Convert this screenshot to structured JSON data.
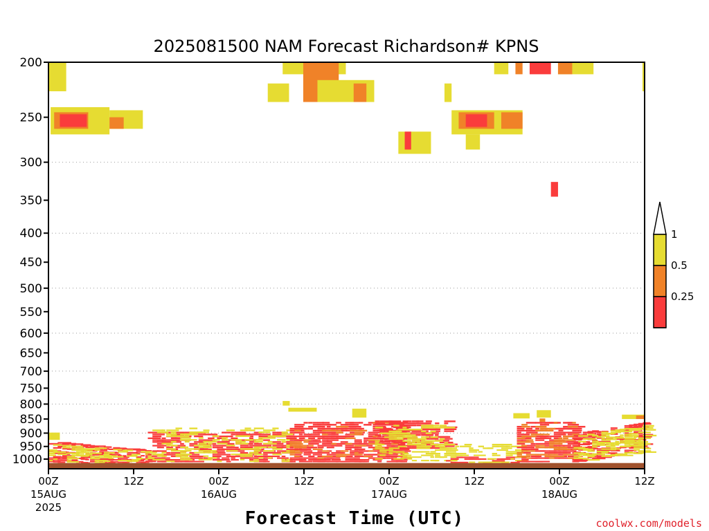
{
  "chart_data": {
    "type": "heatmap",
    "title": "2025081500 NAM Forecast Richardson# KPNS",
    "xlabel": "Forecast Time (UTC)",
    "ylabel": "",
    "y_scale": "pressure (reversed)",
    "ylim": [
      1040,
      200
    ],
    "y_ticks": [
      "200",
      "250",
      "300",
      "350",
      "400",
      "450",
      "500",
      "550",
      "600",
      "650",
      "700",
      "750",
      "800",
      "850",
      "900",
      "950",
      "1000"
    ],
    "x_range_hours": [
      0,
      84
    ],
    "x_ticks": [
      {
        "hour": 0,
        "label": "00Z",
        "sub": "15AUG",
        "sub2": "2025"
      },
      {
        "hour": 12,
        "label": "12Z",
        "sub": "",
        "sub2": ""
      },
      {
        "hour": 24,
        "label": "00Z",
        "sub": "16AUG",
        "sub2": ""
      },
      {
        "hour": 36,
        "label": "12Z",
        "sub": "",
        "sub2": ""
      },
      {
        "hour": 48,
        "label": "00Z",
        "sub": "17AUG",
        "sub2": ""
      },
      {
        "hour": 60,
        "label": "12Z",
        "sub": "",
        "sub2": ""
      },
      {
        "hour": 72,
        "label": "00Z",
        "sub": "18AUG",
        "sub2": ""
      },
      {
        "hour": 84,
        "label": "12Z",
        "sub": "",
        "sub2": ""
      }
    ],
    "grid_pressures": [
      300,
      400,
      500,
      600,
      700,
      800,
      900
    ],
    "legend": {
      "position": "right",
      "levels": [
        {
          "label": "1",
          "color": "#e6dc32"
        },
        {
          "label": "0.5",
          "color": "#f08228"
        },
        {
          "label": "0.25",
          "color": "#fa3c3c"
        }
      ],
      "below_color": "#fa3c3c",
      "above_color": "#ffffff"
    },
    "colors": {
      "lt_025": "#fa3c3c",
      "lt_05": "#f08228",
      "lt_1": "#e6dc32",
      "ground": "#a0522d"
    },
    "cells": [
      {
        "t0": 0,
        "t1": 2.5,
        "p0": 200,
        "p1": 225,
        "c": "lt_1"
      },
      {
        "t0": 0.3,
        "t1": 8.6,
        "p0": 240,
        "p1": 268,
        "c": "lt_1"
      },
      {
        "t0": 8.6,
        "t1": 13.3,
        "p0": 243,
        "p1": 262,
        "c": "lt_1"
      },
      {
        "t0": 0.8,
        "t1": 5.6,
        "p0": 245,
        "p1": 262,
        "c": "lt_05"
      },
      {
        "t0": 8.6,
        "t1": 10.6,
        "p0": 250,
        "p1": 262,
        "c": "lt_05"
      },
      {
        "t0": 1.6,
        "t1": 5.4,
        "p0": 247,
        "p1": 260,
        "c": "lt_025"
      },
      {
        "t0": 30.9,
        "t1": 33.9,
        "p0": 218,
        "p1": 235,
        "c": "lt_1"
      },
      {
        "t0": 33.0,
        "t1": 41.9,
        "p0": 200,
        "p1": 210,
        "c": "lt_1"
      },
      {
        "t0": 35.9,
        "t1": 40.9,
        "p0": 200,
        "p1": 235,
        "c": "lt_05"
      },
      {
        "t0": 37.9,
        "t1": 45.9,
        "p0": 215,
        "p1": 235,
        "c": "lt_1"
      },
      {
        "t0": 43.0,
        "t1": 44.8,
        "p0": 218,
        "p1": 235,
        "c": "lt_05"
      },
      {
        "t0": 49.3,
        "t1": 53.9,
        "p0": 265,
        "p1": 290,
        "c": "lt_1"
      },
      {
        "t0": 50.2,
        "t1": 51.1,
        "p0": 265,
        "p1": 285,
        "c": "lt_025"
      },
      {
        "t0": 55.8,
        "t1": 56.8,
        "p0": 218,
        "p1": 235,
        "c": "lt_1"
      },
      {
        "t0": 56.8,
        "t1": 66.8,
        "p0": 243,
        "p1": 268,
        "c": "lt_1"
      },
      {
        "t0": 57.8,
        "t1": 62.8,
        "p0": 245,
        "p1": 262,
        "c": "lt_05"
      },
      {
        "t0": 58.8,
        "t1": 61.8,
        "p0": 247,
        "p1": 260,
        "c": "lt_025"
      },
      {
        "t0": 63.8,
        "t1": 66.8,
        "p0": 245,
        "p1": 262,
        "c": "lt_05"
      },
      {
        "t0": 58.8,
        "t1": 60.8,
        "p0": 268,
        "p1": 285,
        "c": "lt_1"
      },
      {
        "t0": 62.8,
        "t1": 64.8,
        "p0": 200,
        "p1": 210,
        "c": "lt_1"
      },
      {
        "t0": 65.8,
        "t1": 66.8,
        "p0": 200,
        "p1": 210,
        "c": "lt_05"
      },
      {
        "t0": 67.8,
        "t1": 70.8,
        "p0": 200,
        "p1": 210,
        "c": "lt_025"
      },
      {
        "t0": 71.8,
        "t1": 76.8,
        "p0": 200,
        "p1": 210,
        "c": "lt_1"
      },
      {
        "t0": 71.8,
        "t1": 73.8,
        "p0": 200,
        "p1": 210,
        "c": "lt_05"
      },
      {
        "t0": 83.7,
        "t1": 84,
        "p0": 200,
        "p1": 225,
        "c": "lt_1"
      },
      {
        "t0": 70.8,
        "t1": 71.8,
        "p0": 325,
        "p1": 345,
        "c": "lt_025"
      },
      {
        "t0": 33,
        "t1": 34,
        "p0": 790,
        "p1": 805,
        "c": "lt_1"
      },
      {
        "t0": 33.8,
        "t1": 37.8,
        "p0": 812,
        "p1": 825,
        "c": "lt_1"
      },
      {
        "t0": 42.8,
        "t1": 44.8,
        "p0": 815,
        "p1": 845,
        "c": "lt_1"
      },
      {
        "t0": 80.8,
        "t1": 84,
        "p0": 835,
        "p1": 850,
        "c": "lt_1"
      },
      {
        "t0": 82.8,
        "t1": 84,
        "p0": 838,
        "p1": 850,
        "c": "lt_05"
      },
      {
        "t0": 65.5,
        "t1": 67.8,
        "p0": 830,
        "p1": 848,
        "c": "lt_1"
      },
      {
        "t0": 68.8,
        "t1": 70.8,
        "p0": 820,
        "p1": 845,
        "c": "lt_1"
      },
      {
        "t0": 69.2,
        "t1": 70.0,
        "p0": 848,
        "p1": 860,
        "c": "lt_05"
      },
      {
        "t0": 0,
        "t1": 1.6,
        "p0": 898,
        "p1": 925,
        "c": "lt_1"
      },
      {
        "t0": 0,
        "t1": 84,
        "p0": 1016,
        "p1": 1040,
        "c": "ground"
      }
    ],
    "bands": [
      {
        "t0": 0,
        "t1": 14,
        "color": "lt_025",
        "density": 0.55,
        "p_top": 930,
        "p_bot": 1008,
        "slope": 35
      },
      {
        "t0": 0,
        "t1": 14,
        "color": "lt_1",
        "density": 0.35,
        "p_top": 940,
        "p_bot": 1012,
        "slope": 30
      },
      {
        "t0": 14,
        "t1": 34,
        "color": "lt_025",
        "density": 0.45,
        "p_top": 895,
        "p_bot": 1010,
        "slope": 0
      },
      {
        "t0": 14,
        "t1": 34,
        "color": "lt_1",
        "density": 0.22,
        "p_top": 880,
        "p_bot": 1010,
        "slope": 0
      },
      {
        "t0": 34,
        "t1": 50,
        "color": "lt_025",
        "density": 0.55,
        "p_top": 860,
        "p_bot": 1010,
        "slope": 0
      },
      {
        "t0": 34,
        "t1": 50,
        "color": "lt_05",
        "density": 0.12,
        "p_top": 860,
        "p_bot": 1000,
        "slope": 0
      },
      {
        "t0": 46,
        "t1": 56,
        "color": "lt_025",
        "density": 0.4,
        "p_top": 855,
        "p_bot": 960,
        "slope": 0
      },
      {
        "t0": 46,
        "t1": 56,
        "color": "lt_1",
        "density": 0.3,
        "p_top": 870,
        "p_bot": 1008,
        "slope": 0
      },
      {
        "t0": 56,
        "t1": 66,
        "color": "lt_025",
        "density": 0.25,
        "p_top": 990,
        "p_bot": 1012,
        "slope": 0
      },
      {
        "t0": 56,
        "t1": 66,
        "color": "lt_1",
        "density": 0.3,
        "p_top": 940,
        "p_bot": 1012,
        "slope": 0
      },
      {
        "t0": 66,
        "t1": 74,
        "color": "lt_025",
        "density": 0.5,
        "p_top": 860,
        "p_bot": 1010,
        "slope": 0
      },
      {
        "t0": 66,
        "t1": 74,
        "color": "lt_05",
        "density": 0.2,
        "p_top": 860,
        "p_bot": 1000,
        "slope": 0
      },
      {
        "t0": 74,
        "t1": 84,
        "color": "lt_025",
        "density": 0.45,
        "p_top": 900,
        "p_bot": 1010,
        "slope": -40
      },
      {
        "t0": 74,
        "t1": 84,
        "color": "lt_1",
        "density": 0.4,
        "p_top": 910,
        "p_bot": 1012,
        "slope": -40
      }
    ]
  },
  "credit": "coolwx.com/models"
}
